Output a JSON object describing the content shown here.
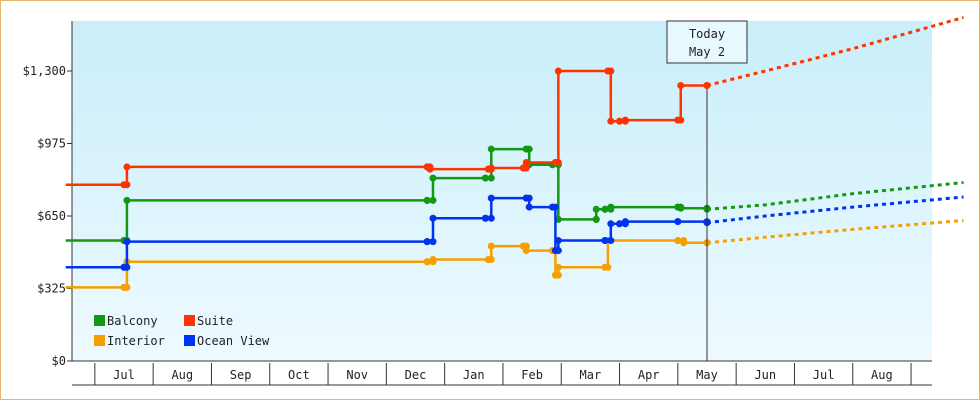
{
  "chart_data": {
    "type": "line",
    "title": "",
    "xlabel": "",
    "ylabel": "",
    "ylim": [
      0,
      1300
    ],
    "y_ticks": [
      "$0",
      "$325",
      "$650",
      "$975",
      "$1,300"
    ],
    "y_tick_values": [
      0,
      325,
      650,
      975,
      1300
    ],
    "x_months": [
      "Jul",
      "Aug",
      "Sep",
      "Oct",
      "Nov",
      "Dec",
      "Jan",
      "Feb",
      "Mar",
      "Apr",
      "May",
      "Jun",
      "Jul",
      "Aug"
    ],
    "today_marker": {
      "line1": "Today",
      "line2": "May 2",
      "x": 10.0
    },
    "legend": {
      "position": "bottom-left"
    },
    "series": [
      {
        "name": "Balcony",
        "color": "#119911",
        "values": [
          [
            -1.0,
            540
          ],
          [
            0.0,
            540
          ],
          [
            0.05,
            720
          ],
          [
            5.2,
            720
          ],
          [
            5.3,
            820
          ],
          [
            6.2,
            820
          ],
          [
            6.3,
            950
          ],
          [
            6.9,
            950
          ],
          [
            6.95,
            880
          ],
          [
            7.35,
            880
          ],
          [
            7.45,
            635
          ],
          [
            8.1,
            635
          ],
          [
            8.1,
            680
          ],
          [
            8.25,
            680
          ],
          [
            8.35,
            690
          ],
          [
            9.5,
            690
          ],
          [
            9.55,
            685
          ],
          [
            10.0,
            680
          ]
        ],
        "forecast": [
          [
            10.0,
            680
          ],
          [
            11.0,
            700
          ],
          [
            12.5,
            750
          ],
          [
            14.4,
            800
          ]
        ]
      },
      {
        "name": "Suite",
        "color": "#ff3300",
        "values": [
          [
            -1.0,
            790
          ],
          [
            0.0,
            790
          ],
          [
            0.05,
            870
          ],
          [
            5.2,
            870
          ],
          [
            5.25,
            860
          ],
          [
            6.25,
            860
          ],
          [
            6.3,
            865
          ],
          [
            6.85,
            865
          ],
          [
            6.9,
            890
          ],
          [
            7.4,
            890
          ],
          [
            7.45,
            1300
          ],
          [
            8.3,
            1300
          ],
          [
            8.35,
            1075
          ],
          [
            8.5,
            1075
          ],
          [
            8.6,
            1080
          ],
          [
            9.5,
            1080
          ],
          [
            9.55,
            1235
          ],
          [
            10.0,
            1235
          ]
        ],
        "forecast": [
          [
            10.0,
            1235
          ],
          [
            11.0,
            1300
          ],
          [
            12.5,
            1400
          ],
          [
            14.4,
            1540
          ]
        ]
      },
      {
        "name": "Interior",
        "color": "#f5a000",
        "values": [
          [
            -1.0,
            330
          ],
          [
            0.0,
            330
          ],
          [
            0.05,
            445
          ],
          [
            5.2,
            445
          ],
          [
            5.3,
            455
          ],
          [
            6.25,
            455
          ],
          [
            6.3,
            515
          ],
          [
            6.85,
            515
          ],
          [
            6.9,
            495
          ],
          [
            7.35,
            495
          ],
          [
            7.4,
            385
          ],
          [
            7.45,
            420
          ],
          [
            8.25,
            420
          ],
          [
            8.3,
            540
          ],
          [
            9.5,
            540
          ],
          [
            9.6,
            530
          ],
          [
            10.0,
            530
          ]
        ],
        "forecast": [
          [
            10.0,
            530
          ],
          [
            11.0,
            555
          ],
          [
            12.5,
            590
          ],
          [
            14.4,
            630
          ]
        ]
      },
      {
        "name": "Ocean View",
        "color": "#0033ee",
        "values": [
          [
            -1.0,
            420
          ],
          [
            0.0,
            420
          ],
          [
            0.05,
            535
          ],
          [
            5.2,
            535
          ],
          [
            5.3,
            640
          ],
          [
            6.2,
            640
          ],
          [
            6.3,
            730
          ],
          [
            6.9,
            730
          ],
          [
            6.95,
            690
          ],
          [
            7.35,
            690
          ],
          [
            7.4,
            495
          ],
          [
            7.45,
            540
          ],
          [
            8.25,
            540
          ],
          [
            8.35,
            615
          ],
          [
            8.5,
            615
          ],
          [
            8.6,
            625
          ],
          [
            9.5,
            625
          ],
          [
            10.0,
            620
          ]
        ],
        "forecast": [
          [
            10.0,
            620
          ],
          [
            11.0,
            650
          ],
          [
            12.5,
            690
          ],
          [
            14.4,
            735
          ]
        ]
      }
    ]
  }
}
